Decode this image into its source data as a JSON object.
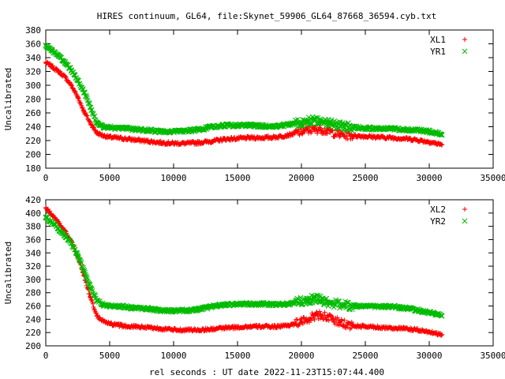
{
  "title": "HIRES continuum, GL64, file:Skynet_59906_GL64_87668_36594.cyb.txt",
  "xlabel": "rel seconds : UT date 2022-11-23T15:07:44.400",
  "colors": {
    "red": "#ff0000",
    "green": "#00bb00"
  },
  "chart_data": [
    {
      "type": "scatter",
      "ylabel": "Uncalibrated",
      "xlim": [
        0,
        35000
      ],
      "ylim": [
        180,
        380
      ],
      "xticks": [
        "0",
        "5000",
        "10000",
        "15000",
        "20000",
        "25000",
        "30000",
        "35000"
      ],
      "yticks": [
        "180",
        "200",
        "220",
        "240",
        "260",
        "280",
        "300",
        "320",
        "340",
        "360",
        "380"
      ],
      "legend_position": "top-right",
      "series": [
        {
          "name": "XL1",
          "marker": "+",
          "color": "#ff0000",
          "x": [
            0,
            500,
            1000,
            1500,
            2000,
            2500,
            3000,
            3500,
            4000,
            4500,
            5000,
            6000,
            7000,
            8000,
            9000,
            10000,
            11000,
            12000,
            13000,
            14000,
            15000,
            16000,
            17000,
            18000,
            19000,
            20000,
            20500,
            21000,
            21500,
            22000,
            23000,
            24000,
            25000,
            26000,
            27000,
            28000,
            29000,
            30000,
            30500,
            31000
          ],
          "y": [
            333,
            327,
            320,
            312,
            300,
            283,
            262,
            245,
            231,
            227,
            225,
            223,
            221,
            219,
            217,
            216,
            216,
            217,
            219,
            222,
            223,
            224,
            224,
            225,
            228,
            233,
            235,
            236,
            237,
            234,
            229,
            227,
            226,
            225,
            224,
            223,
            221,
            218,
            216,
            214
          ]
        },
        {
          "name": "YR1",
          "marker": "x",
          "color": "#00bb00",
          "x": [
            0,
            500,
            1000,
            1500,
            2000,
            2500,
            3000,
            3500,
            4000,
            4500,
            5000,
            6000,
            7000,
            8000,
            9000,
            10000,
            11000,
            12000,
            13000,
            14000,
            15000,
            16000,
            17000,
            18000,
            19000,
            20000,
            20500,
            21000,
            21500,
            22000,
            23000,
            24000,
            25000,
            26000,
            27000,
            28000,
            29000,
            30000,
            30500,
            31000
          ],
          "y": [
            358,
            350,
            342,
            333,
            322,
            307,
            290,
            268,
            245,
            240,
            239,
            238,
            236,
            235,
            233,
            233,
            234,
            236,
            240,
            242,
            242,
            242,
            241,
            241,
            243,
            246,
            248,
            250,
            249,
            246,
            241,
            239,
            238,
            237,
            237,
            236,
            235,
            233,
            231,
            228
          ]
        }
      ]
    },
    {
      "type": "scatter",
      "ylabel": "Uncalibrated",
      "xlim": [
        0,
        35000
      ],
      "ylim": [
        200,
        420
      ],
      "xticks": [
        "0",
        "5000",
        "10000",
        "15000",
        "20000",
        "25000",
        "30000",
        "35000"
      ],
      "yticks": [
        "200",
        "220",
        "240",
        "260",
        "280",
        "300",
        "320",
        "340",
        "360",
        "380",
        "400",
        "420"
      ],
      "legend_position": "top-right",
      "series": [
        {
          "name": "XL2",
          "marker": "+",
          "color": "#ff0000",
          "x": [
            0,
            500,
            1000,
            1500,
            2000,
            2500,
            3000,
            3500,
            4000,
            4500,
            5000,
            6000,
            7000,
            8000,
            9000,
            10000,
            11000,
            12000,
            13000,
            14000,
            15000,
            16000,
            17000,
            18000,
            19000,
            20000,
            20500,
            21000,
            21500,
            22000,
            23000,
            24000,
            25000,
            26000,
            27000,
            28000,
            29000,
            30000,
            30500,
            31000
          ],
          "y": [
            408,
            397,
            385,
            372,
            357,
            335,
            305,
            272,
            245,
            237,
            233,
            230,
            229,
            228,
            226,
            224,
            224,
            224,
            225,
            227,
            228,
            229,
            229,
            229,
            231,
            236,
            240,
            245,
            247,
            243,
            235,
            230,
            229,
            228,
            227,
            226,
            224,
            221,
            219,
            217
          ]
        },
        {
          "name": "YR2",
          "marker": "x",
          "color": "#00bb00",
          "x": [
            0,
            500,
            1000,
            1500,
            2000,
            2500,
            3000,
            3500,
            4000,
            4500,
            5000,
            6000,
            7000,
            8000,
            9000,
            10000,
            11000,
            12000,
            13000,
            14000,
            15000,
            16000,
            17000,
            18000,
            19000,
            20000,
            20500,
            21000,
            21500,
            22000,
            23000,
            24000,
            25000,
            26000,
            27000,
            28000,
            29000,
            30000,
            30500,
            31000
          ],
          "y": [
            394,
            385,
            376,
            366,
            354,
            336,
            313,
            288,
            268,
            262,
            260,
            259,
            257,
            256,
            253,
            253,
            253,
            255,
            259,
            262,
            263,
            263,
            263,
            262,
            263,
            267,
            269,
            271,
            270,
            266,
            262,
            260,
            260,
            259,
            259,
            257,
            254,
            250,
            248,
            245
          ]
        }
      ]
    }
  ]
}
